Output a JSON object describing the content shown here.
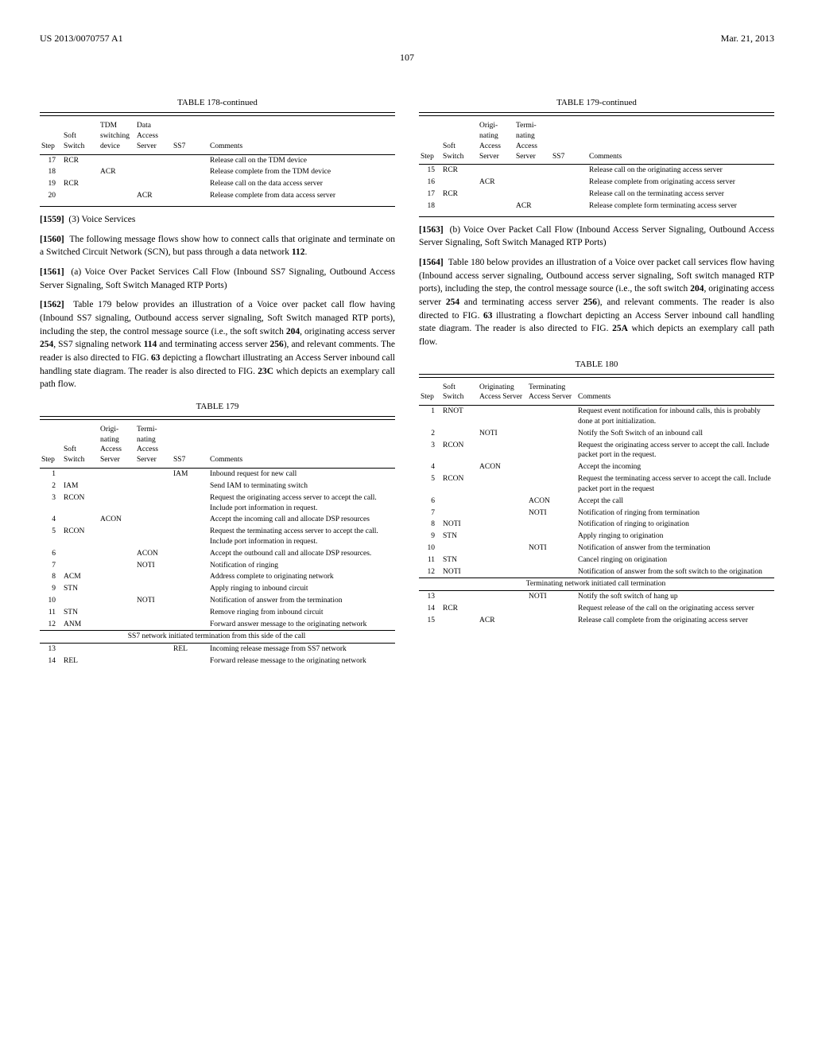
{
  "header": {
    "pub_number": "US 2013/0070757 A1",
    "date": "Mar. 21, 2013",
    "page": "107"
  },
  "table178": {
    "title": "TABLE 178-continued",
    "columns": [
      "Step",
      "Soft Switch",
      "TDM switching device",
      "Data Access Server",
      "SS7",
      "Comments"
    ],
    "rows": [
      {
        "step": "17",
        "c1": "RCR",
        "c2": "",
        "c3": "",
        "c4": "",
        "comment": "Release call on the TDM device"
      },
      {
        "step": "18",
        "c1": "",
        "c2": "ACR",
        "c3": "",
        "c4": "",
        "comment": "Release complete from the TDM device"
      },
      {
        "step": "19",
        "c1": "RCR",
        "c2": "",
        "c3": "",
        "c4": "",
        "comment": "Release call on the data access server"
      },
      {
        "step": "20",
        "c1": "",
        "c2": "",
        "c3": "ACR",
        "c4": "",
        "comment": "Release complete from data access server"
      }
    ]
  },
  "paragraphs_left": [
    {
      "num": "[1559]",
      "text": "(3) Voice Services"
    },
    {
      "num": "[1560]",
      "text": "The following message flows show how to connect calls that originate and terminate on a Switched Circuit Network (SCN), but pass through a data network 112."
    },
    {
      "num": "[1561]",
      "text": "(a) Voice Over Packet Services Call Flow (Inbound SS7 Signaling, Outbound Access Server Signaling, Soft Switch Managed RTP Ports)"
    },
    {
      "num": "[1562]",
      "text": "Table 179 below provides an illustration of a Voice over packet call flow having (Inbound SS7 signaling, Outbound access server signaling, Soft Switch managed RTP ports), including the step, the control message source (i.e., the soft switch 204, originating access server 254, SS7 signaling network 114 and terminating access server 256), and relevant comments. The reader is also directed to FIG. 63 depicting a flowchart illustrating an Access Server inbound call handling state diagram. The reader is also directed to FIG. 23C which depicts an exemplary call path flow."
    }
  ],
  "table179_left": {
    "title": "TABLE 179",
    "columns": [
      "Step",
      "Soft Switch",
      "Origi-nating Access Server",
      "Termi-nating Access Server",
      "SS7",
      "Comments"
    ],
    "rows": [
      {
        "step": "1",
        "c1": "",
        "c2": "",
        "c3": "",
        "c4": "IAM",
        "comment": "Inbound request for new call"
      },
      {
        "step": "2",
        "c1": "IAM",
        "c2": "",
        "c3": "",
        "c4": "",
        "comment": "Send IAM to terminating switch"
      },
      {
        "step": "3",
        "c1": "RCON",
        "c2": "",
        "c3": "",
        "c4": "",
        "comment": "Request the originating access server to accept the call. Include port information in request."
      },
      {
        "step": "4",
        "c1": "",
        "c2": "ACON",
        "c3": "",
        "c4": "",
        "comment": "Accept the incoming call and allocate DSP resources"
      },
      {
        "step": "5",
        "c1": "RCON",
        "c2": "",
        "c3": "",
        "c4": "",
        "comment": "Request the terminating access server to accept the call. Include port information in request."
      },
      {
        "step": "6",
        "c1": "",
        "c2": "",
        "c3": "ACON",
        "c4": "",
        "comment": "Accept the outbound call and allocate DSP resources."
      },
      {
        "step": "7",
        "c1": "",
        "c2": "",
        "c3": "NOTI",
        "c4": "",
        "comment": "Notification of ringing"
      },
      {
        "step": "8",
        "c1": "ACM",
        "c2": "",
        "c3": "",
        "c4": "",
        "comment": "Address complete to originating network"
      },
      {
        "step": "9",
        "c1": "STN",
        "c2": "",
        "c3": "",
        "c4": "",
        "comment": "Apply ringing to inbound circuit"
      },
      {
        "step": "10",
        "c1": "",
        "c2": "",
        "c3": "NOTI",
        "c4": "",
        "comment": "Notification of answer from the termination"
      },
      {
        "step": "11",
        "c1": "STN",
        "c2": "",
        "c3": "",
        "c4": "",
        "comment": "Remove ringing from inbound circuit"
      },
      {
        "step": "12",
        "c1": "ANM",
        "c2": "",
        "c3": "",
        "c4": "",
        "comment": "Forward answer message to the originating network"
      }
    ],
    "section": "SS7 network initiated termination from this side of the call",
    "rows2": [
      {
        "step": "13",
        "c1": "",
        "c2": "",
        "c3": "",
        "c4": "REL",
        "comment": "Incoming release message from SS7 network"
      },
      {
        "step": "14",
        "c1": "REL",
        "c2": "",
        "c3": "",
        "c4": "",
        "comment": "Forward release message to the originating network"
      }
    ]
  },
  "table179_right": {
    "title": "TABLE 179-continued",
    "columns": [
      "Step",
      "Soft Switch",
      "Origi-nating Access Server",
      "Termi-nating Access Server",
      "SS7",
      "Comments"
    ],
    "rows": [
      {
        "step": "15",
        "c1": "RCR",
        "c2": "",
        "c3": "",
        "c4": "",
        "comment": "Release call on the originating access server"
      },
      {
        "step": "16",
        "c1": "",
        "c2": "ACR",
        "c3": "",
        "c4": "",
        "comment": "Release complete from originating access server"
      },
      {
        "step": "17",
        "c1": "RCR",
        "c2": "",
        "c3": "",
        "c4": "",
        "comment": "Release call on the terminating access server"
      },
      {
        "step": "18",
        "c1": "",
        "c2": "",
        "c3": "ACR",
        "c4": "",
        "comment": "Release complete form terminating access server"
      }
    ]
  },
  "paragraphs_right": [
    {
      "num": "[1563]",
      "text": "(b) Voice Over Packet Call Flow (Inbound Access Server Signaling, Outbound Access Server Signaling, Soft Switch Managed RTP Ports)"
    },
    {
      "num": "[1564]",
      "text": "Table 180 below provides an illustration of a Voice over packet call services flow having (Inbound access server signaling, Outbound access server signaling, Soft switch managed RTP ports), including the step, the control message source (i.e., the soft switch 204, originating access server 254 and terminating access server 256), and relevant comments. The reader is also directed to FIG. 63 illustrating a flowchart depicting an Access Server inbound call handling state diagram. The reader is also directed to FIG. 25A which depicts an exemplary call path flow."
    }
  ],
  "table180": {
    "title": "TABLE 180",
    "columns": [
      "Step",
      "Soft Switch",
      "Originating Access Server",
      "Terminating Access Server",
      "Comments"
    ],
    "rows": [
      {
        "step": "1",
        "c1": "RNOT",
        "c2": "",
        "c3": "",
        "comment": "Request event notification for inbound calls, this is probably done at port initialization."
      },
      {
        "step": "2",
        "c1": "",
        "c2": "NOTI",
        "c3": "",
        "comment": "Notify the Soft Switch of an inbound call"
      },
      {
        "step": "3",
        "c1": "RCON",
        "c2": "",
        "c3": "",
        "comment": "Request the originating access server to accept the call. Include packet port in the request."
      },
      {
        "step": "4",
        "c1": "",
        "c2": "ACON",
        "c3": "",
        "comment": "Accept the incoming"
      },
      {
        "step": "5",
        "c1": "RCON",
        "c2": "",
        "c3": "",
        "comment": "Request the terminating access server to accept the call. Include packet port in the request"
      },
      {
        "step": "6",
        "c1": "",
        "c2": "",
        "c3": "ACON",
        "comment": "Accept the call"
      },
      {
        "step": "7",
        "c1": "",
        "c2": "",
        "c3": "NOTI",
        "comment": "Notification of ringing from termination"
      },
      {
        "step": "8",
        "c1": "NOTI",
        "c2": "",
        "c3": "",
        "comment": "Notification of ringing to origination"
      },
      {
        "step": "9",
        "c1": "STN",
        "c2": "",
        "c3": "",
        "comment": "Apply ringing to origination"
      },
      {
        "step": "10",
        "c1": "",
        "c2": "",
        "c3": "NOTI",
        "comment": "Notification of answer from the termination"
      },
      {
        "step": "11",
        "c1": "STN",
        "c2": "",
        "c3": "",
        "comment": "Cancel ringing on origination"
      },
      {
        "step": "12",
        "c1": "NOTI",
        "c2": "",
        "c3": "",
        "comment": "Notification of answer from the soft switch to the origination"
      }
    ],
    "section": "Terminating network initiated call termination",
    "rows2": [
      {
        "step": "13",
        "c1": "",
        "c2": "",
        "c3": "NOTI",
        "comment": "Notify the soft switch of hang up"
      },
      {
        "step": "14",
        "c1": "RCR",
        "c2": "",
        "c3": "",
        "comment": "Request release of the call on the originating access server"
      },
      {
        "step": "15",
        "c1": "",
        "c2": "ACR",
        "c3": "",
        "comment": "Release call complete from the originating access server"
      }
    ]
  }
}
